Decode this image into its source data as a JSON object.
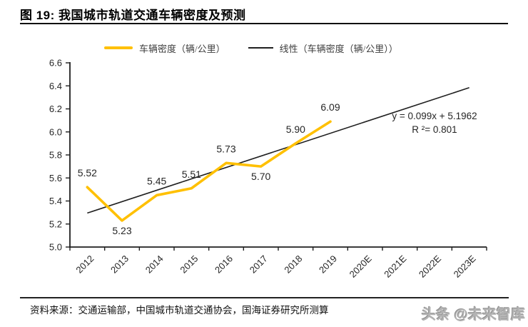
{
  "header": {
    "title": "图 19: 我国城市轨道交通车辆密度及预测"
  },
  "chart_data": {
    "type": "line",
    "title": "我国城市轨道交通车辆密度及预测",
    "categories": [
      "2012",
      "2013",
      "2014",
      "2015",
      "2016",
      "2017",
      "2018",
      "2019",
      "2020E",
      "2021E",
      "2022E",
      "2023E"
    ],
    "series": [
      {
        "name": "车辆密度（辆/公里）",
        "color": "#FFC000",
        "values": [
          5.52,
          5.23,
          5.45,
          5.51,
          5.73,
          5.7,
          5.9,
          6.09,
          null,
          null,
          null,
          null
        ],
        "data_labels": [
          "5.52",
          "5.23",
          "5.45",
          "5.51",
          "5.73",
          "5.70",
          "5.90",
          "6.09"
        ],
        "label_below": [
          false,
          true,
          false,
          false,
          false,
          true,
          false,
          false
        ]
      },
      {
        "name": "线性（车辆密度（辆/公里））",
        "color": "#1f1f1f",
        "trend": {
          "slope": 0.099,
          "intercept": 5.1962,
          "x_start": 1,
          "x_end": 12
        }
      }
    ],
    "annotation": {
      "equation": "y = 0.099x + 5.1962",
      "r_squared": "R ²= 0.801"
    },
    "ylim": [
      5.0,
      6.6
    ],
    "ytick_step": 0.2,
    "ytick_labels": [
      "5.0",
      "5.2",
      "5.4",
      "5.6",
      "5.8",
      "6.0",
      "6.2",
      "6.4",
      "6.6"
    ],
    "grid": false,
    "legend_position": "top",
    "text_color": "#262626"
  },
  "footer": {
    "source": "资料来源：交通运输部，中国城市轨道交通协会，国海证券研究所测算",
    "watermark": "头条 @未来智库"
  }
}
